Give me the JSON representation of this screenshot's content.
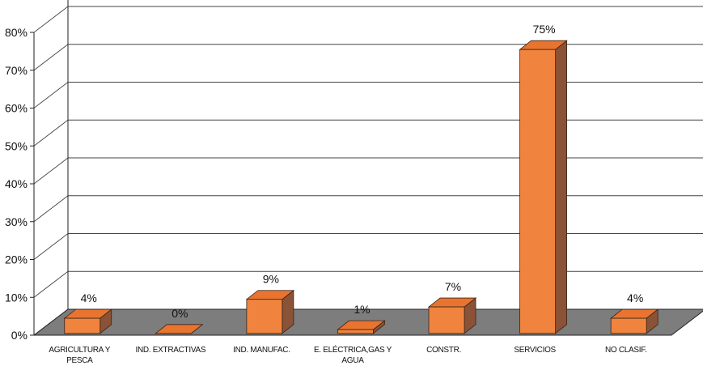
{
  "chart_data": {
    "type": "bar",
    "style": "3d-column",
    "categories": [
      [
        "AGRICULTURA Y",
        "PESCA"
      ],
      [
        "IND. EXTRACTIVAS"
      ],
      [
        "IND. MANUFAC."
      ],
      [
        "E. ELÉCTRICA,GAS Y",
        "AGUA"
      ],
      [
        "CONSTR."
      ],
      [
        "SERVICIOS"
      ],
      [
        "NO CLASIF."
      ]
    ],
    "values": [
      4,
      0,
      9,
      1,
      7,
      75,
      4
    ],
    "data_labels": [
      "4%",
      "0%",
      "9%",
      "1%",
      "7%",
      "75%",
      "4%"
    ],
    "y_ticks": [
      "0%",
      "10%",
      "20%",
      "30%",
      "40%",
      "50%",
      "60%",
      "70%",
      "80%"
    ],
    "ylim": [
      0,
      80
    ],
    "ytick_step": 10,
    "grid": true,
    "legend": "none",
    "colors": {
      "bar_front": "#f0843e",
      "bar_top": "#e9742f",
      "bar_side": "#8a5236",
      "bar_stroke": "#3a2416",
      "floor": "#7d7d7d",
      "grid": "#444444",
      "axis": "#222222"
    }
  }
}
